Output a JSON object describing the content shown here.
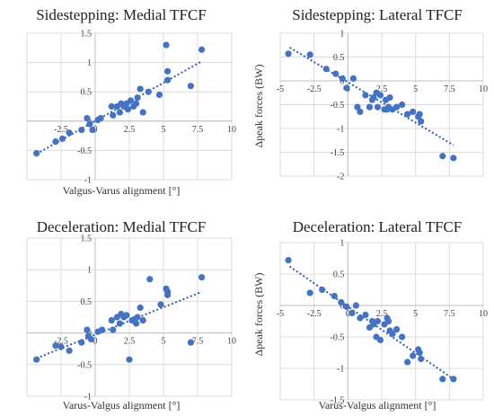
{
  "colors": {
    "point": "#4472c4",
    "trend": "#2f5fb3",
    "axis": "#bfbfbf",
    "grid": "#dcdcdc"
  },
  "chart_data": [
    {
      "type": "scatter",
      "title": "Sidestepping: Medial TFCF",
      "xlabel": "Valgus-Varus alignment [°]",
      "ylabel": "",
      "xlim": [
        -5,
        10
      ],
      "ylim": [
        -1,
        1.5
      ],
      "xticks": [
        "-2.5",
        "0",
        "2.5",
        "5",
        "7.5",
        "10"
      ],
      "yticks": [
        "-1",
        "-0.5",
        "0",
        "0.5",
        "1",
        "1.5"
      ],
      "grid": true,
      "trendline": [
        [
          -4.3,
          -0.56
        ],
        [
          7.8,
          1.02
        ]
      ],
      "series": [
        {
          "x": [
            -4.3,
            -2.9,
            -2.4,
            -1.9,
            -1.0,
            -0.6,
            -0.4,
            -0.2,
            0.2,
            0.4,
            1.2,
            1.3,
            1.6,
            1.8,
            1.9,
            2.1,
            2.3,
            2.4,
            2.6,
            2.8,
            3.0,
            3.1,
            3.3,
            3.5,
            3.9,
            4.7,
            5.2,
            5.3,
            5.3,
            7.0,
            7.8
          ],
          "y": [
            -0.55,
            -0.35,
            -0.3,
            -0.2,
            -0.15,
            0.05,
            -0.05,
            -0.15,
            0.02,
            0.05,
            0.25,
            0.1,
            0.25,
            0.15,
            0.3,
            0.25,
            0.3,
            0.2,
            0.35,
            0.25,
            0.3,
            0.4,
            0.55,
            0.15,
            0.5,
            0.45,
            1.3,
            0.85,
            0.7,
            0.6,
            1.22
          ]
        }
      ]
    },
    {
      "type": "scatter",
      "title": "Sidestepping: Lateral TFCF",
      "xlabel": "",
      "ylabel": "Δpeak forces (BW)",
      "xlim": [
        -5,
        10
      ],
      "ylim": [
        -2,
        1
      ],
      "xticks": [
        "-5",
        "-2.5",
        "0",
        "2.5",
        "5",
        "7.5",
        "10"
      ],
      "yticks": [
        "-2",
        "-1.5",
        "-1",
        "-0.5",
        "0",
        "0.5",
        "1"
      ],
      "grid": true,
      "trendline": [
        [
          -4.3,
          0.7
        ],
        [
          7.8,
          -1.35
        ]
      ],
      "series": [
        {
          "x": [
            -4.4,
            -2.8,
            -1.6,
            -0.9,
            -0.4,
            -0.1,
            0.4,
            0.7,
            0.9,
            1.3,
            1.6,
            1.8,
            1.9,
            2.1,
            2.2,
            2.4,
            2.7,
            2.8,
            2.9,
            3.0,
            3.1,
            3.3,
            3.6,
            4.0,
            4.4,
            4.8,
            5.2,
            5.3,
            5.4,
            7.0,
            7.8
          ],
          "y": [
            0.57,
            0.55,
            0.25,
            0.15,
            0.05,
            -0.15,
            0.05,
            -0.55,
            -0.65,
            -0.3,
            -0.55,
            -0.4,
            -0.35,
            -0.25,
            -0.55,
            -0.3,
            -0.6,
            -0.4,
            -0.6,
            -0.55,
            -0.35,
            -0.6,
            -0.55,
            -0.5,
            -0.7,
            -0.65,
            -0.75,
            -0.7,
            -0.85,
            -1.58,
            -1.62
          ]
        }
      ]
    },
    {
      "type": "scatter",
      "title": "Deceleration: Medial TFCF",
      "xlabel": "Varus-Valgus alignment [°]",
      "ylabel": "",
      "xlim": [
        -5,
        10
      ],
      "ylim": [
        -1,
        1.5
      ],
      "xticks": [
        "-2.5",
        "0",
        "2.5",
        "5",
        "7.5",
        "10"
      ],
      "yticks": [
        "-1",
        "-0.5",
        "0",
        "0.5",
        "1",
        "1.5"
      ],
      "grid": true,
      "trendline": [
        [
          -4.3,
          -0.4
        ],
        [
          7.8,
          0.65
        ]
      ],
      "series": [
        {
          "x": [
            -4.3,
            -2.9,
            -2.5,
            -1.9,
            -1.0,
            -0.6,
            -0.5,
            -0.3,
            0.2,
            0.5,
            1.2,
            1.3,
            1.6,
            1.8,
            1.9,
            2.1,
            2.3,
            2.5,
            2.7,
            2.9,
            3.0,
            3.1,
            3.3,
            3.5,
            4.0,
            4.8,
            5.2,
            5.3,
            5.3,
            7.0,
            7.8
          ],
          "y": [
            -0.42,
            -0.2,
            -0.22,
            -0.28,
            -0.15,
            0.05,
            -0.05,
            -0.1,
            0.02,
            0.05,
            0.2,
            0.05,
            0.25,
            0.15,
            0.3,
            0.25,
            0.28,
            -0.42,
            0.2,
            0.22,
            0.15,
            0.25,
            0.4,
            0.2,
            0.85,
            0.45,
            0.7,
            0.65,
            0.6,
            -0.15,
            0.88
          ]
        }
      ]
    },
    {
      "type": "scatter",
      "title": "Deceleration: Lateral TFCF",
      "xlabel": "Varus-Valgus alignment [°]",
      "ylabel": "Δpeak forces (BW)",
      "xlim": [
        -5,
        10
      ],
      "ylim": [
        -1.5,
        1
      ],
      "xticks": [
        "-5",
        "-2.5",
        "0",
        "2.5",
        "5",
        "7.5",
        "10"
      ],
      "yticks": [
        "-1.5",
        "-1",
        "-0.5",
        "0",
        "0.5",
        "1"
      ],
      "grid": true,
      "trendline": [
        [
          -4.3,
          0.62
        ],
        [
          7.8,
          -1.17
        ]
      ],
      "series": [
        {
          "x": [
            -4.4,
            -2.8,
            -1.9,
            -1.0,
            -0.5,
            -0.1,
            0.3,
            0.6,
            0.9,
            1.3,
            1.6,
            1.8,
            1.9,
            2.1,
            2.2,
            2.4,
            2.7,
            2.9,
            3.0,
            3.1,
            3.3,
            3.6,
            4.0,
            4.4,
            4.8,
            5.2,
            5.3,
            5.4,
            7.0,
            7.8
          ],
          "y": [
            0.72,
            0.2,
            0.25,
            0.15,
            0.05,
            -0.02,
            -0.12,
            0.0,
            -0.2,
            -0.15,
            -0.35,
            -0.25,
            -0.3,
            -0.5,
            -0.25,
            -0.55,
            -0.3,
            -0.2,
            -0.25,
            -0.4,
            -0.45,
            -0.38,
            -0.5,
            -0.9,
            -0.8,
            -0.7,
            -0.75,
            -0.85,
            -1.17,
            -1.17
          ]
        }
      ]
    }
  ]
}
